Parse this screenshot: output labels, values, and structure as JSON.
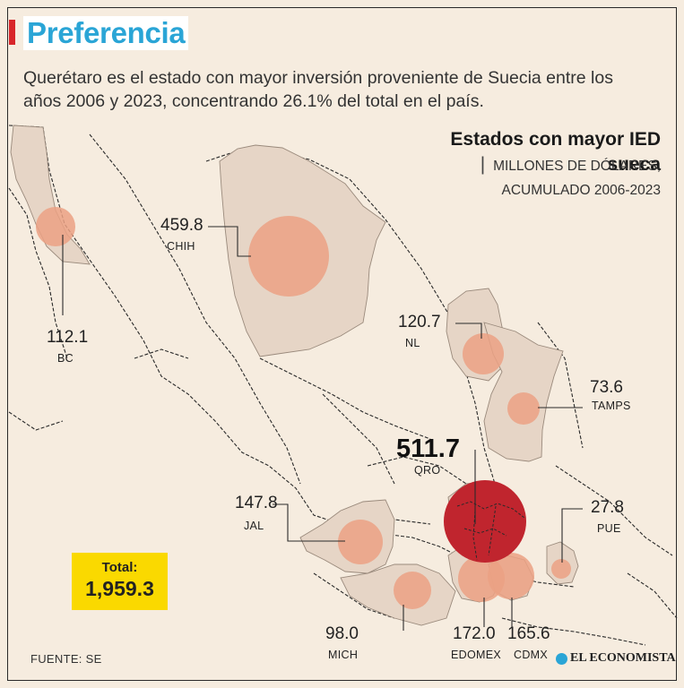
{
  "header": {
    "title": "Preferencia",
    "subtitle": "Querétaro es el estado con mayor inversión proveniente de Suecia entre los años 2006 y 2023, concentrando 26.1% del total en el país."
  },
  "map_title": {
    "bold": "Estados con mayor IED sueca",
    "separator": "|",
    "unit": "MILLONES DE DÓLARES,",
    "period": "ACUMULADO 2006-2023"
  },
  "states": [
    {
      "value": "112.1",
      "label": "BC"
    },
    {
      "value": "459.8",
      "label": "CHIH"
    },
    {
      "value": "120.7",
      "label": "NL"
    },
    {
      "value": "73.6",
      "label": "TAMPS"
    },
    {
      "value": "511.7",
      "label": "QRO"
    },
    {
      "value": "147.8",
      "label": "JAL"
    },
    {
      "value": "27.8",
      "label": "PUE"
    },
    {
      "value": "98.0",
      "label": "MICH"
    },
    {
      "value": "172.0",
      "label": "EDOMEX"
    },
    {
      "value": "165.6",
      "label": "CDMX"
    }
  ],
  "total": {
    "label": "Total:",
    "value": "1,959.3"
  },
  "footer": {
    "source": "FUENTE: SE",
    "brand": "EL ECONOMISTA"
  },
  "colors": {
    "accent": "#2aa5d6",
    "bubble": "#eba184",
    "highlight": "#c0252e",
    "state_fill": "#e6d5c6",
    "total_bg": "#fad900"
  }
}
